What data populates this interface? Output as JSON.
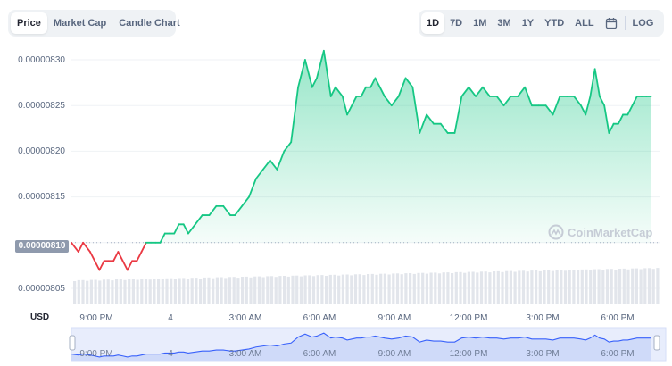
{
  "tabs": [
    {
      "label": "Price",
      "active": true
    },
    {
      "label": "Market Cap",
      "active": false
    },
    {
      "label": "Candle Chart",
      "active": false
    }
  ],
  "ranges": [
    {
      "label": "1D",
      "active": true
    },
    {
      "label": "7D",
      "active": false
    },
    {
      "label": "1M",
      "active": false
    },
    {
      "label": "3M",
      "active": false
    },
    {
      "label": "1Y",
      "active": false
    },
    {
      "label": "YTD",
      "active": false
    },
    {
      "label": "ALL",
      "active": false
    }
  ],
  "calendar_icon": "calendar-icon",
  "log_label": "LOG",
  "current_price_label": "0.00000810",
  "currency_label": "USD",
  "watermark": {
    "icon": "coinmarketcap-logo-icon",
    "text": "CoinMarketCap"
  },
  "colors": {
    "up": "#16c784",
    "down": "#ea3943",
    "accent": "#3861fb",
    "tab_bg": "#eff2f5"
  },
  "chart_data": {
    "type": "line",
    "y_tick_labels": [
      "0.00000830",
      "0.00000825",
      "0.00000820",
      "0.00000815",
      "0.00000810",
      "0.00000805"
    ],
    "ylim": [
      8.04e-06,
      8.31e-06
    ],
    "x_tick_labels": [
      "9:00 PM",
      "4",
      "3:00 AM",
      "6:00 AM",
      "9:00 AM",
      "12:00 PM",
      "3:00 PM",
      "6:00 PM"
    ],
    "reference_price": 8.1e-06,
    "series": [
      {
        "hours": [
          0,
          0.3,
          0.5,
          0.8,
          1,
          1.2,
          1.4,
          1.6,
          1.8,
          2.0,
          2.2,
          2.4,
          2.6,
          2.8,
          3.0,
          3.2,
          3.4,
          3.6,
          3.8,
          4.0,
          4.2,
          4.4,
          4.6,
          4.8,
          5.0,
          5.3,
          5.6,
          5.9,
          6.2,
          6.5,
          6.8,
          7.0,
          7.3,
          7.6,
          7.9,
          8.2,
          8.5,
          8.8,
          9.1,
          9.4,
          9.7,
          10.0,
          10.3,
          10.5,
          10.8,
          11.1,
          11.3,
          11.6,
          11.8,
          12.0,
          12.2,
          12.4,
          12.6,
          12.8,
          13.0,
          13.2,
          13.4,
          13.7,
          14.0,
          14.3,
          14.6,
          14.9,
          15.2,
          15.5,
          15.8,
          16.1,
          16.4,
          16.7,
          17.0,
          17.3,
          17.6,
          17.9,
          18.2,
          18.5,
          18.8,
          19.1,
          19.4,
          19.7,
          20.0,
          20.3,
          20.6,
          20.9,
          21.2,
          21.5,
          21.8,
          22.0,
          22.2,
          22.4,
          22.6,
          22.8,
          23.0,
          23.2,
          23.4,
          23.6,
          23.8,
          24.0,
          24.2,
          24.4,
          24.6,
          24.8
        ],
        "values": [
          8.1e-06,
          8.09e-06,
          8.1e-06,
          8.09e-06,
          8.08e-06,
          8.07e-06,
          8.08e-06,
          8.08e-06,
          8.08e-06,
          8.09e-06,
          8.08e-06,
          8.07e-06,
          8.08e-06,
          8.08e-06,
          8.09e-06,
          8.1e-06,
          8.1e-06,
          8.1e-06,
          8.1e-06,
          8.11e-06,
          8.11e-06,
          8.11e-06,
          8.12e-06,
          8.12e-06,
          8.11e-06,
          8.12e-06,
          8.13e-06,
          8.13e-06,
          8.14e-06,
          8.14e-06,
          8.13e-06,
          8.13e-06,
          8.14e-06,
          8.15e-06,
          8.17e-06,
          8.18e-06,
          8.19e-06,
          8.18e-06,
          8.2e-06,
          8.21e-06,
          8.27e-06,
          8.3e-06,
          8.27e-06,
          8.28e-06,
          8.31e-06,
          8.26e-06,
          8.27e-06,
          8.26e-06,
          8.24e-06,
          8.25e-06,
          8.26e-06,
          8.26e-06,
          8.27e-06,
          8.27e-06,
          8.28e-06,
          8.27e-06,
          8.26e-06,
          8.25e-06,
          8.26e-06,
          8.28e-06,
          8.27e-06,
          8.22e-06,
          8.24e-06,
          8.23e-06,
          8.23e-06,
          8.22e-06,
          8.22e-06,
          8.26e-06,
          8.27e-06,
          8.26e-06,
          8.27e-06,
          8.26e-06,
          8.26e-06,
          8.25e-06,
          8.26e-06,
          8.26e-06,
          8.27e-06,
          8.25e-06,
          8.25e-06,
          8.25e-06,
          8.24e-06,
          8.26e-06,
          8.26e-06,
          8.26e-06,
          8.25e-06,
          8.24e-06,
          8.26e-06,
          8.29e-06,
          8.26e-06,
          8.25e-06,
          8.22e-06,
          8.23e-06,
          8.23e-06,
          8.24e-06,
          8.24e-06,
          8.25e-06,
          8.26e-06,
          8.26e-06,
          8.26e-06,
          8.26e-06
        ]
      }
    ]
  }
}
